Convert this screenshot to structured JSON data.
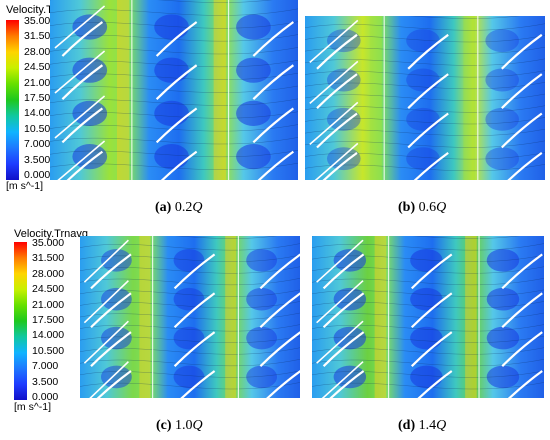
{
  "legend_top": {
    "title": "Velocity.Trnavg",
    "ticks": [
      "35.000",
      "31.500",
      "28.000",
      "24.500",
      "21.000",
      "17.500",
      "14.000",
      "10.500",
      "7.000",
      "3.500",
      "0.000"
    ],
    "unit": "[m s^-1]"
  },
  "legend_bottom": {
    "title": "Velocity.Trnavg",
    "ticks": [
      "35.000",
      "31.500",
      "28.000",
      "24.500",
      "21.000",
      "17.500",
      "14.000",
      "10.500",
      "7.000",
      "3.500",
      "0.000"
    ],
    "unit": "[m s^-1]"
  },
  "colormap": [
    "#ff0000",
    "#ff7a00",
    "#ffd400",
    "#c8f000",
    "#66e000",
    "#1ec81e",
    "#10c8a0",
    "#10b4ff",
    "#1e78ff",
    "#1e3cff",
    "#1010c8"
  ],
  "panels": [
    {
      "letter": "(a)",
      "value": "0.2",
      "flow_symbol": "Q"
    },
    {
      "letter": "(b)",
      "value": "0.6",
      "flow_symbol": "Q"
    },
    {
      "letter": "(c)",
      "value": "1.0",
      "flow_symbol": "Q"
    },
    {
      "letter": "(d)",
      "value": "1.4",
      "flow_symbol": "Q"
    }
  ]
}
